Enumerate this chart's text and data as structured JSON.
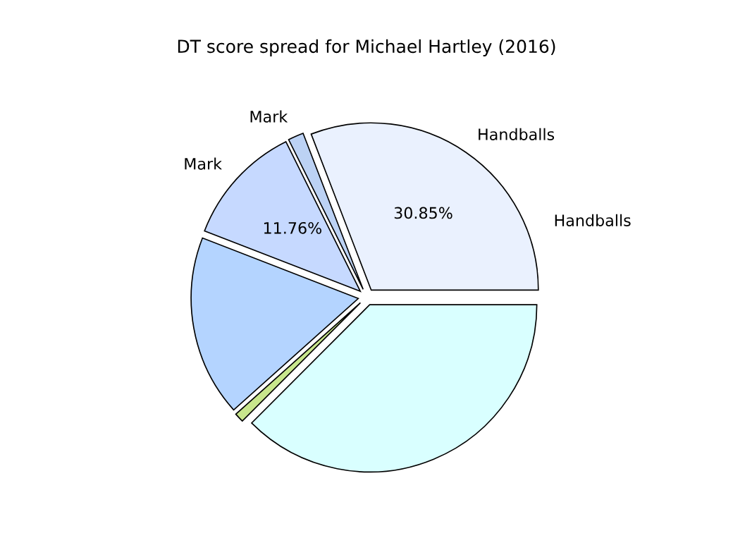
{
  "chart_data": {
    "type": "pie",
    "title": "DT score spread for Michael Hartley (2016)",
    "categories": [
      "Handballs",
      "Mark",
      "Mark",
      null,
      null,
      null
    ],
    "values": [
      30.85,
      1.5,
      11.76,
      17.5,
      0.9,
      37.49
    ],
    "value_labels": [
      "30.85%",
      null,
      "11.76%",
      null,
      null,
      null
    ],
    "colors": [
      "#eaf1fe",
      "#bcd2f4",
      "#c6d9ff",
      "#b4d4ff",
      "#c8e68c",
      "#d9ffff"
    ],
    "annotations": [
      "Handballs"
    ]
  }
}
